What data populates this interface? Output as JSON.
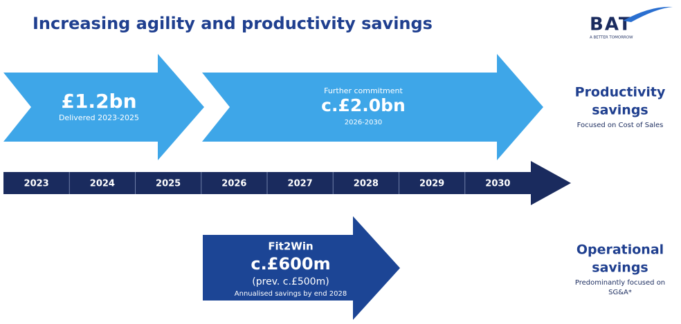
{
  "header": {
    "title": "Increasing agility and productivity savings"
  },
  "logo": {
    "name": "BAT",
    "tagline": "A BETTER TOMORROW"
  },
  "arrows": [
    {
      "amount": "£1.2bn",
      "note": "Delivered 2023-2025"
    },
    {
      "caption": "Further commitment",
      "amount": "c.£2.0bn",
      "note": "2026-2030"
    },
    {
      "caption": "Fit2Win",
      "amount": "c.£600m",
      "previous": "(prev. c.£500m)",
      "note": "Annualised savings by end 2028"
    }
  ],
  "timeline": {
    "years": [
      "2023",
      "2024",
      "2025",
      "2026",
      "2027",
      "2028",
      "2029",
      "2030"
    ]
  },
  "sections": [
    {
      "title_lines": [
        "Productivity",
        "savings"
      ],
      "notes": [
        "Focused on Cost of Sales"
      ]
    },
    {
      "title_lines": [
        "Operational",
        "savings"
      ],
      "notes": [
        "Predominantly focused on",
        "SG&A*"
      ]
    }
  ]
}
